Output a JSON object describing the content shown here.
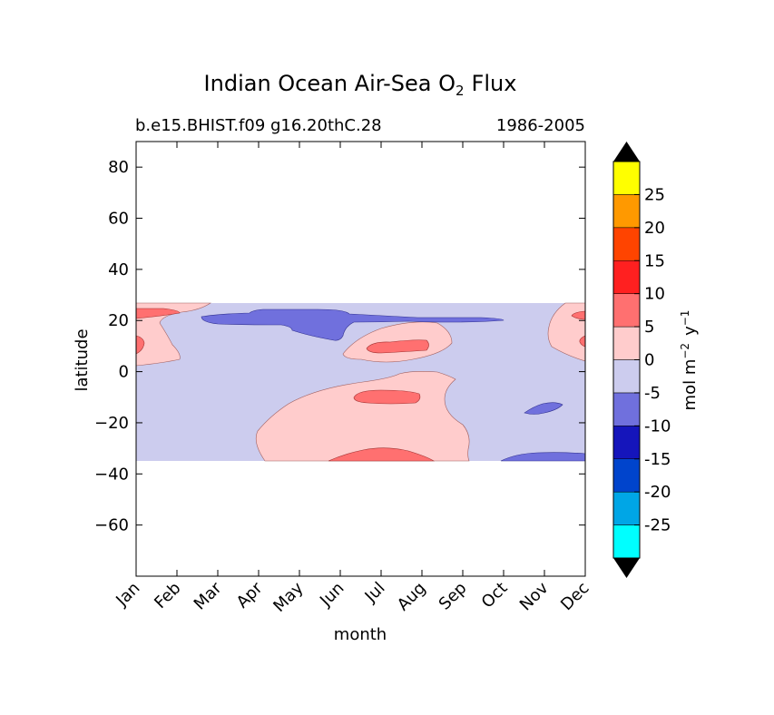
{
  "chart_data": {
    "type": "heatmap",
    "title_main": "Indian Ocean Air-Sea O",
    "title_sub": "2",
    "title_tail": "Flux",
    "subtitle_left": "b.e15.BHIST.f09 g16.20thC.28",
    "subtitle_right": "1986-2005",
    "xlabel": "month",
    "ylabel": "latitude",
    "x_categories": [
      "Jan",
      "Feb",
      "Mar",
      "Apr",
      "May",
      "Jun",
      "Jul",
      "Aug",
      "Sep",
      "Oct",
      "Nov",
      "Dec"
    ],
    "xlim": [
      0,
      11
    ],
    "ylim": [
      -80,
      90
    ],
    "yticks": [
      80,
      60,
      40,
      20,
      0,
      -20,
      -40,
      -60
    ],
    "ytick_labels": [
      "80",
      "60",
      "40",
      "20",
      "0",
      "−20",
      "−40",
      "−60"
    ],
    "data_lat_range": [
      -34,
      27
    ],
    "colorbar": {
      "label_main": "mol m",
      "label_exp1": "−2",
      "label_y": "y",
      "label_exp2": "−1",
      "levels": [
        -30,
        -25,
        -20,
        -15,
        -10,
        -5,
        0,
        5,
        10,
        15,
        20,
        25,
        30
      ],
      "tick_values": [
        -25,
        -20,
        -15,
        -10,
        -5,
        0,
        5,
        10,
        15,
        20,
        25
      ],
      "tick_labels": [
        "-25",
        "-20",
        "-15",
        "-10",
        "-5",
        "0",
        "5",
        "10",
        "15",
        "20",
        "25"
      ],
      "colors": [
        "#00ffff",
        "#00a6e6",
        "#0044cc",
        "#1515bb",
        "#7070dd",
        "#ccccee",
        "#ffcccc",
        "#ff7070",
        "#ff2020",
        "#ff4400",
        "#ff9900",
        "#ffff00"
      ],
      "extend_color": "#000000"
    },
    "regions": [
      {
        "level": "-5 to 0",
        "description": "background field over latitudes -34 to 27",
        "color": "#ccccee"
      },
      {
        "level": "0 to 5",
        "description": "positive flux in Jan-Feb 5-27N, Jun-Sep 8-22N, May-Oct -34 to 0, Dec 5-27N",
        "color": "#ffcccc"
      },
      {
        "level": "5 to 10",
        "description": "Jan ~13N & ~24N, Jul ~10N, Jul ~-10S, Jun-Sep ~-32S, Dec ~13N & ~23N",
        "color": "#ff7070"
      },
      {
        "level": "-10 to -5",
        "description": "Mar-Sep ~20N band, Nov ~-14S, Nov-Dec ~-33S",
        "color": "#7070dd"
      }
    ]
  }
}
